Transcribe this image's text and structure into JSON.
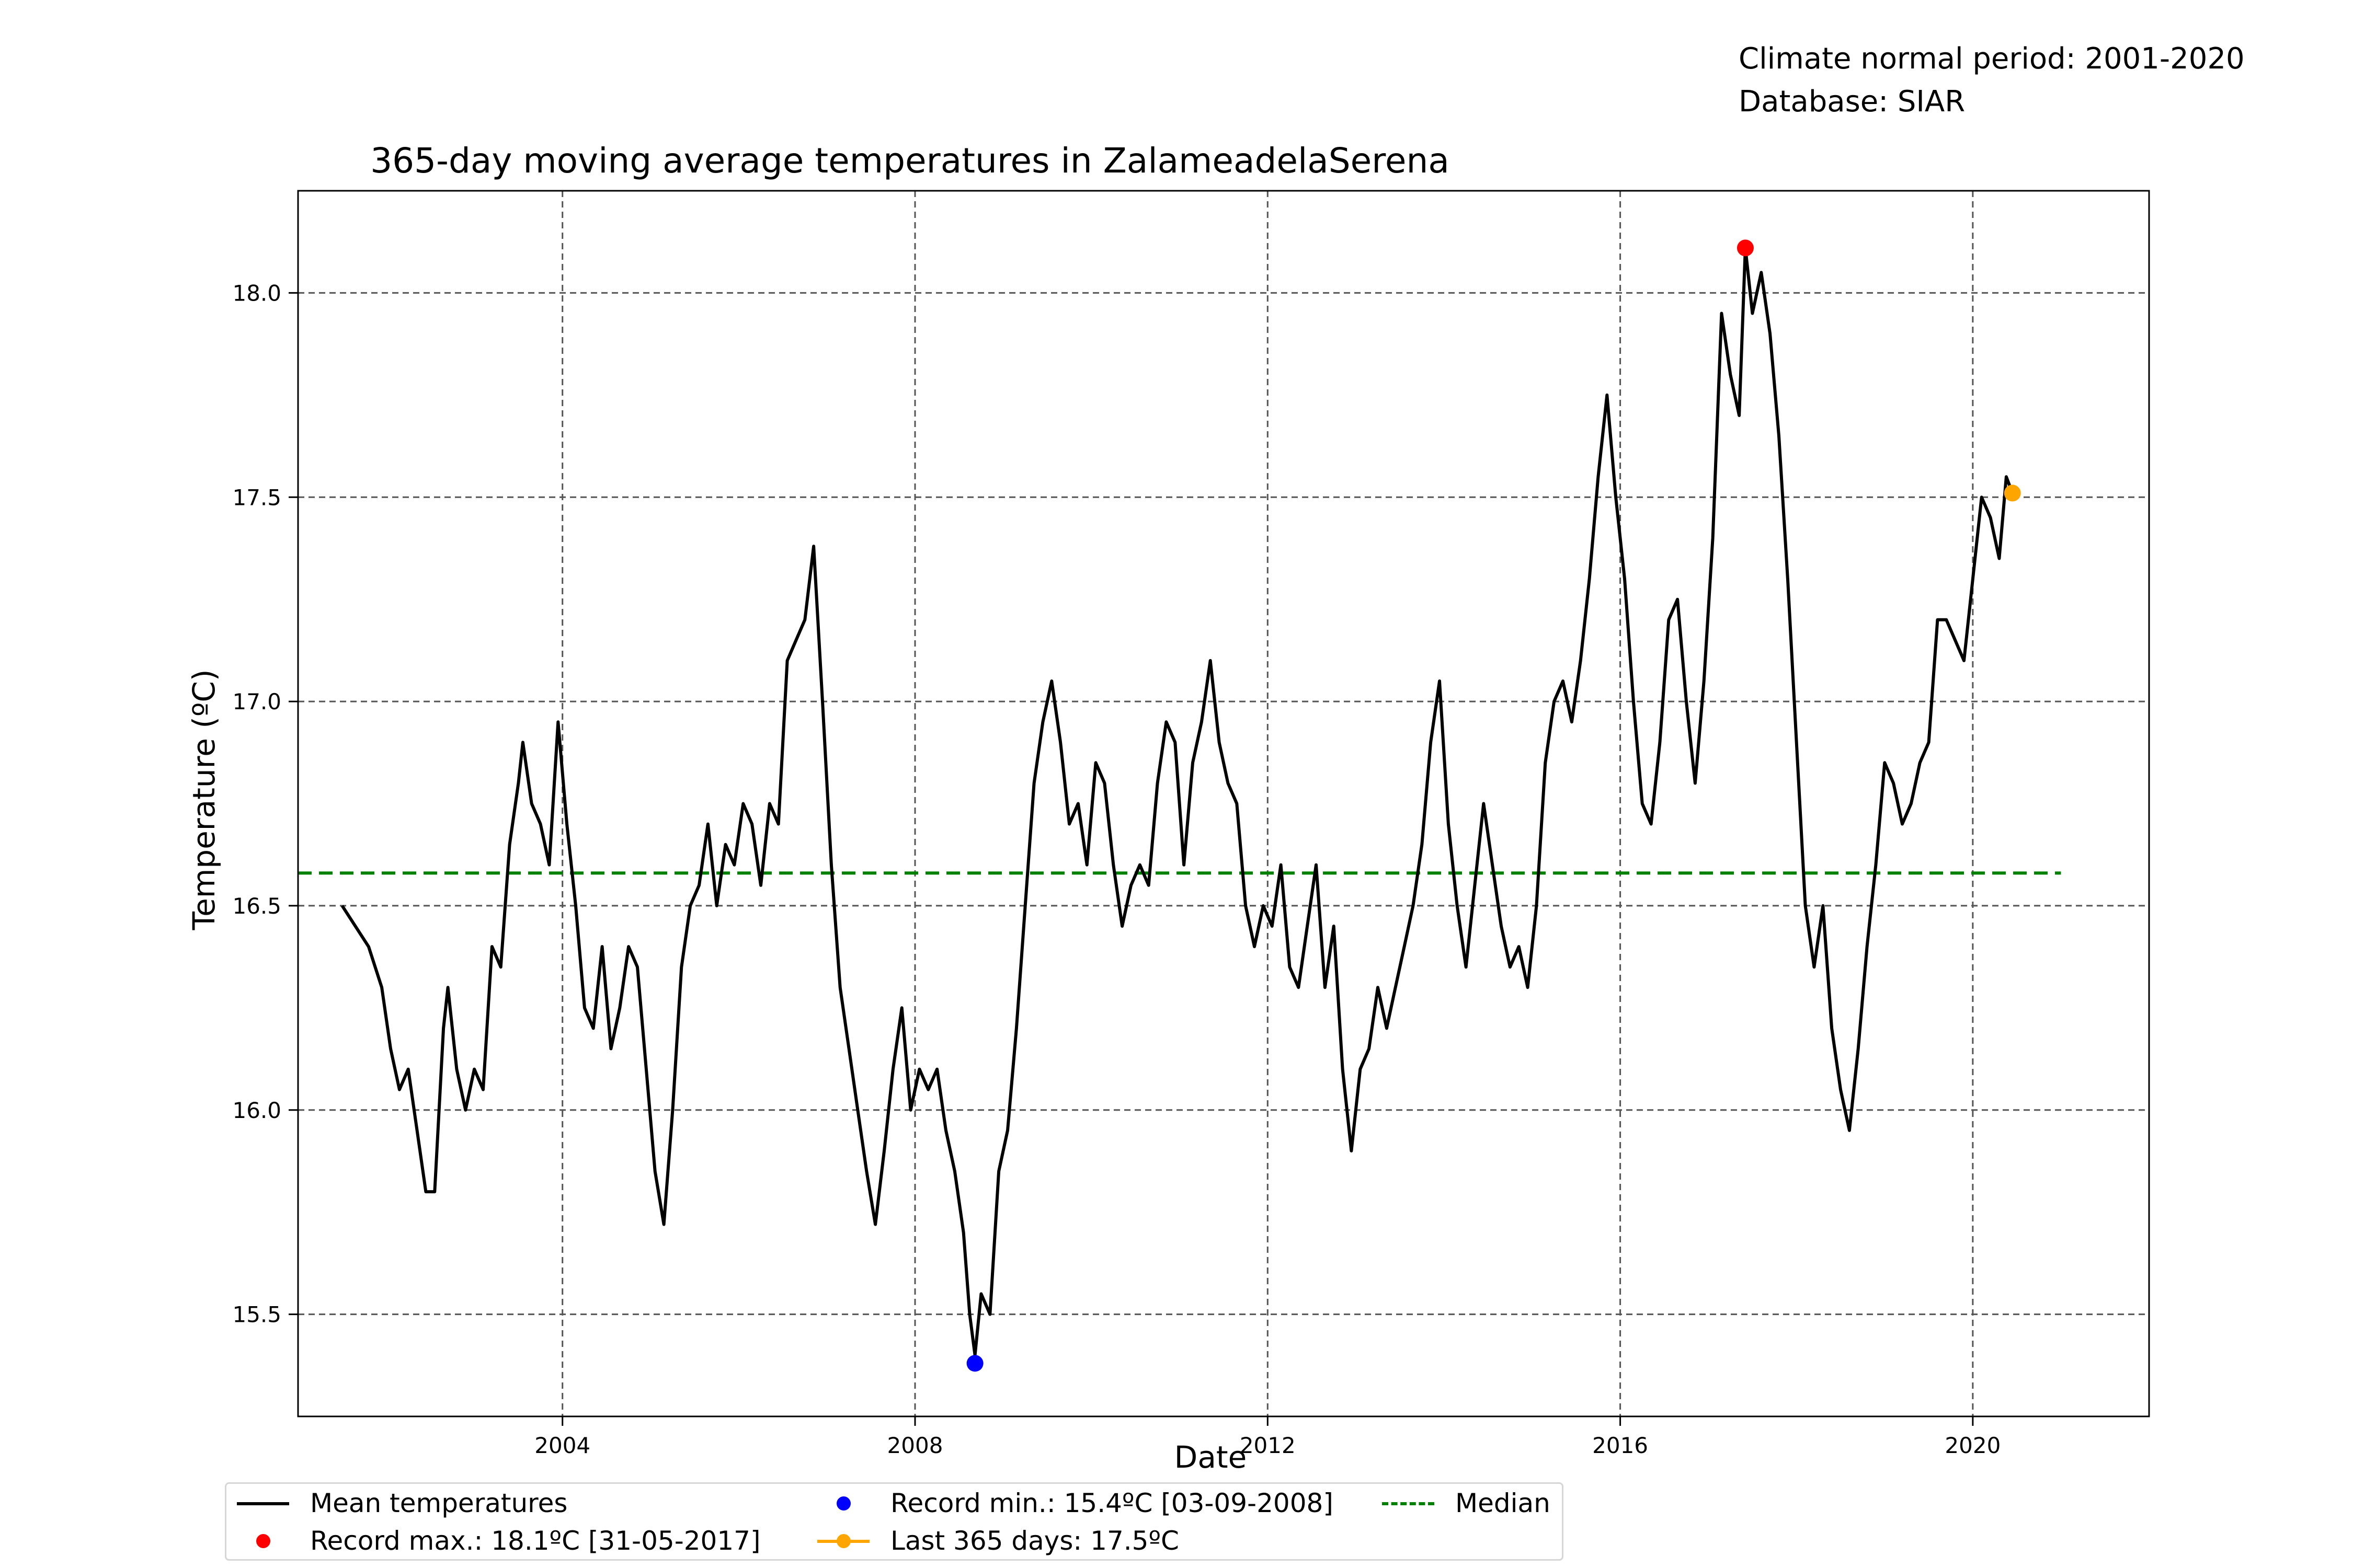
{
  "chart_data": {
    "type": "line",
    "title": "365-day moving average temperatures in ZalameadelaSerena",
    "xlabel": "Date",
    "ylabel": "Temperature (ºC)",
    "xlim": [
      2001.0,
      2022.0
    ],
    "ylim": [
      15.25,
      18.25
    ],
    "x_ticks": [
      2004,
      2008,
      2012,
      2016,
      2020
    ],
    "y_ticks": [
      15.5,
      16.0,
      16.5,
      17.0,
      17.5,
      18.0
    ],
    "y_tick_labels": [
      "15.5",
      "16.0",
      "16.5",
      "17.0",
      "17.5",
      "18.0"
    ],
    "grid": true,
    "legend_position": "bottom-center",
    "notes": [
      "Climate normal period: 2001-2020",
      "Database: SIAR"
    ],
    "series": [
      {
        "name": "Mean temperatures",
        "color": "#000000",
        "points": [
          [
            2001.5,
            16.5
          ],
          [
            2001.65,
            16.45
          ],
          [
            2001.8,
            16.4
          ],
          [
            2001.95,
            16.3
          ],
          [
            2002.05,
            16.15
          ],
          [
            2002.15,
            16.05
          ],
          [
            2002.25,
            16.1
          ],
          [
            2002.35,
            15.95
          ],
          [
            2002.45,
            15.8
          ],
          [
            2002.55,
            15.8
          ],
          [
            2002.65,
            16.2
          ],
          [
            2002.7,
            16.3
          ],
          [
            2002.8,
            16.1
          ],
          [
            2002.9,
            16.0
          ],
          [
            2003.0,
            16.1
          ],
          [
            2003.1,
            16.05
          ],
          [
            2003.2,
            16.4
          ],
          [
            2003.3,
            16.35
          ],
          [
            2003.4,
            16.65
          ],
          [
            2003.5,
            16.8
          ],
          [
            2003.55,
            16.9
          ],
          [
            2003.65,
            16.75
          ],
          [
            2003.75,
            16.7
          ],
          [
            2003.85,
            16.6
          ],
          [
            2003.95,
            16.95
          ],
          [
            2004.05,
            16.7
          ],
          [
            2004.15,
            16.5
          ],
          [
            2004.25,
            16.25
          ],
          [
            2004.35,
            16.2
          ],
          [
            2004.45,
            16.4
          ],
          [
            2004.55,
            16.15
          ],
          [
            2004.65,
            16.25
          ],
          [
            2004.75,
            16.4
          ],
          [
            2004.85,
            16.35
          ],
          [
            2004.95,
            16.1
          ],
          [
            2005.05,
            15.85
          ],
          [
            2005.15,
            15.72
          ],
          [
            2005.25,
            16.0
          ],
          [
            2005.35,
            16.35
          ],
          [
            2005.45,
            16.5
          ],
          [
            2005.55,
            16.55
          ],
          [
            2005.65,
            16.7
          ],
          [
            2005.75,
            16.5
          ],
          [
            2005.85,
            16.65
          ],
          [
            2005.95,
            16.6
          ],
          [
            2006.05,
            16.75
          ],
          [
            2006.15,
            16.7
          ],
          [
            2006.25,
            16.55
          ],
          [
            2006.35,
            16.75
          ],
          [
            2006.45,
            16.7
          ],
          [
            2006.55,
            17.1
          ],
          [
            2006.65,
            17.15
          ],
          [
            2006.75,
            17.2
          ],
          [
            2006.85,
            17.38
          ],
          [
            2006.95,
            17.0
          ],
          [
            2007.05,
            16.6
          ],
          [
            2007.15,
            16.3
          ],
          [
            2007.25,
            16.15
          ],
          [
            2007.35,
            16.0
          ],
          [
            2007.45,
            15.85
          ],
          [
            2007.55,
            15.72
          ],
          [
            2007.65,
            15.9
          ],
          [
            2007.75,
            16.1
          ],
          [
            2007.85,
            16.25
          ],
          [
            2007.95,
            16.0
          ],
          [
            2008.05,
            16.1
          ],
          [
            2008.15,
            16.05
          ],
          [
            2008.25,
            16.1
          ],
          [
            2008.35,
            15.95
          ],
          [
            2008.45,
            15.85
          ],
          [
            2008.55,
            15.7
          ],
          [
            2008.62,
            15.5
          ],
          [
            2008.68,
            15.4
          ],
          [
            2008.75,
            15.55
          ],
          [
            2008.85,
            15.5
          ],
          [
            2008.95,
            15.85
          ],
          [
            2009.05,
            15.95
          ],
          [
            2009.15,
            16.2
          ],
          [
            2009.25,
            16.5
          ],
          [
            2009.35,
            16.8
          ],
          [
            2009.45,
            16.95
          ],
          [
            2009.55,
            17.05
          ],
          [
            2009.65,
            16.9
          ],
          [
            2009.75,
            16.7
          ],
          [
            2009.85,
            16.75
          ],
          [
            2009.95,
            16.6
          ],
          [
            2010.05,
            16.85
          ],
          [
            2010.15,
            16.8
          ],
          [
            2010.25,
            16.6
          ],
          [
            2010.35,
            16.45
          ],
          [
            2010.45,
            16.55
          ],
          [
            2010.55,
            16.6
          ],
          [
            2010.65,
            16.55
          ],
          [
            2010.75,
            16.8
          ],
          [
            2010.85,
            16.95
          ],
          [
            2010.95,
            16.9
          ],
          [
            2011.05,
            16.6
          ],
          [
            2011.15,
            16.85
          ],
          [
            2011.25,
            16.95
          ],
          [
            2011.35,
            17.1
          ],
          [
            2011.45,
            16.9
          ],
          [
            2011.55,
            16.8
          ],
          [
            2011.65,
            16.75
          ],
          [
            2011.75,
            16.5
          ],
          [
            2011.85,
            16.4
          ],
          [
            2011.95,
            16.5
          ],
          [
            2012.05,
            16.45
          ],
          [
            2012.15,
            16.6
          ],
          [
            2012.25,
            16.35
          ],
          [
            2012.35,
            16.3
          ],
          [
            2012.45,
            16.45
          ],
          [
            2012.55,
            16.6
          ],
          [
            2012.65,
            16.3
          ],
          [
            2012.75,
            16.45
          ],
          [
            2012.85,
            16.1
          ],
          [
            2012.95,
            15.9
          ],
          [
            2013.05,
            16.1
          ],
          [
            2013.15,
            16.15
          ],
          [
            2013.25,
            16.3
          ],
          [
            2013.35,
            16.2
          ],
          [
            2013.45,
            16.3
          ],
          [
            2013.55,
            16.4
          ],
          [
            2013.65,
            16.5
          ],
          [
            2013.75,
            16.65
          ],
          [
            2013.85,
            16.9
          ],
          [
            2013.95,
            17.05
          ],
          [
            2014.05,
            16.7
          ],
          [
            2014.15,
            16.5
          ],
          [
            2014.25,
            16.35
          ],
          [
            2014.35,
            16.55
          ],
          [
            2014.45,
            16.75
          ],
          [
            2014.55,
            16.6
          ],
          [
            2014.65,
            16.45
          ],
          [
            2014.75,
            16.35
          ],
          [
            2014.85,
            16.4
          ],
          [
            2014.95,
            16.3
          ],
          [
            2015.05,
            16.5
          ],
          [
            2015.15,
            16.85
          ],
          [
            2015.25,
            17.0
          ],
          [
            2015.35,
            17.05
          ],
          [
            2015.45,
            16.95
          ],
          [
            2015.55,
            17.1
          ],
          [
            2015.65,
            17.3
          ],
          [
            2015.75,
            17.55
          ],
          [
            2015.85,
            17.75
          ],
          [
            2015.95,
            17.5
          ],
          [
            2016.05,
            17.3
          ],
          [
            2016.15,
            17.0
          ],
          [
            2016.25,
            16.75
          ],
          [
            2016.35,
            16.7
          ],
          [
            2016.45,
            16.9
          ],
          [
            2016.55,
            17.2
          ],
          [
            2016.65,
            17.25
          ],
          [
            2016.75,
            17.0
          ],
          [
            2016.85,
            16.8
          ],
          [
            2016.95,
            17.05
          ],
          [
            2017.05,
            17.4
          ],
          [
            2017.15,
            17.95
          ],
          [
            2017.25,
            17.8
          ],
          [
            2017.35,
            17.7
          ],
          [
            2017.42,
            18.11
          ],
          [
            2017.5,
            17.95
          ],
          [
            2017.6,
            18.05
          ],
          [
            2017.7,
            17.9
          ],
          [
            2017.8,
            17.65
          ],
          [
            2017.9,
            17.3
          ],
          [
            2018.0,
            16.9
          ],
          [
            2018.1,
            16.5
          ],
          [
            2018.2,
            16.35
          ],
          [
            2018.3,
            16.5
          ],
          [
            2018.4,
            16.2
          ],
          [
            2018.5,
            16.05
          ],
          [
            2018.6,
            15.95
          ],
          [
            2018.7,
            16.15
          ],
          [
            2018.8,
            16.4
          ],
          [
            2018.9,
            16.6
          ],
          [
            2019.0,
            16.85
          ],
          [
            2019.1,
            16.8
          ],
          [
            2019.2,
            16.7
          ],
          [
            2019.3,
            16.75
          ],
          [
            2019.4,
            16.85
          ],
          [
            2019.5,
            16.9
          ],
          [
            2019.6,
            17.2
          ],
          [
            2019.7,
            17.2
          ],
          [
            2019.8,
            17.15
          ],
          [
            2019.9,
            17.1
          ],
          [
            2020.0,
            17.3
          ],
          [
            2020.1,
            17.5
          ],
          [
            2020.2,
            17.45
          ],
          [
            2020.3,
            17.35
          ],
          [
            2020.38,
            17.55
          ],
          [
            2020.45,
            17.51
          ]
        ]
      },
      {
        "name": "Median",
        "color": "#008000",
        "style": "dashed",
        "x": [
          2001.0,
          2021.0
        ],
        "y": [
          16.58,
          16.58
        ]
      }
    ],
    "markers": [
      {
        "name": "Record max.: 18.1ºC [31-05-2017]",
        "x": 2017.42,
        "y": 18.11,
        "color": "#ff0000"
      },
      {
        "name": "Record min.: 15.4ºC [03-09-2008]",
        "x": 2008.68,
        "y": 15.38,
        "color": "#0000ff"
      },
      {
        "name": "Last 365 days: 17.5ºC",
        "x": 2020.45,
        "y": 17.51,
        "color": "#ffa500"
      }
    ]
  }
}
